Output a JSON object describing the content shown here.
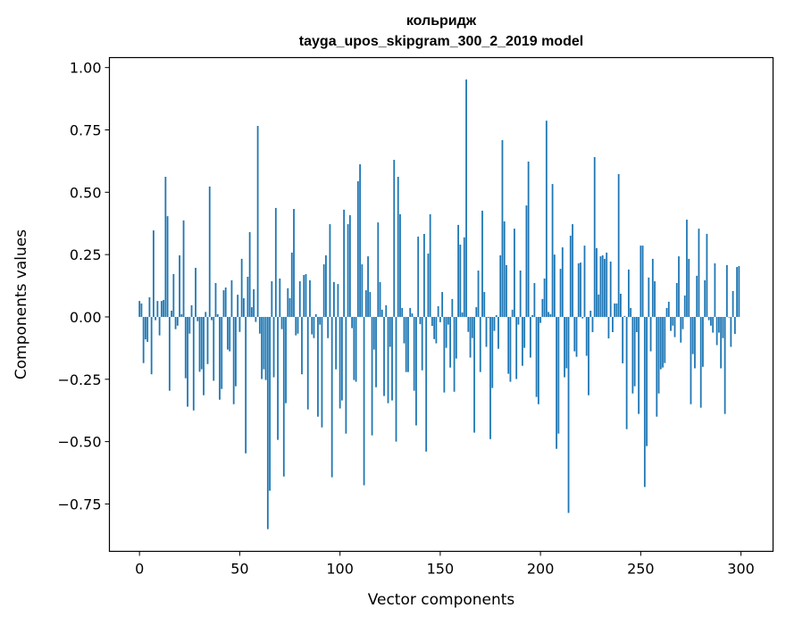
{
  "chart_data": {
    "type": "bar",
    "title_line1": "кольридж",
    "title_line2": "tayga_upos_skipgram_300_2_2019 model",
    "xlabel": "Vector components",
    "ylabel": "Components values",
    "xlim": [
      -15,
      316
    ],
    "ylim": [
      -0.94,
      1.04
    ],
    "xticks": [
      0,
      50,
      100,
      150,
      200,
      250,
      300
    ],
    "xtick_labels": [
      "0",
      "50",
      "100",
      "150",
      "200",
      "250",
      "300"
    ],
    "yticks": [
      -0.75,
      -0.5,
      -0.25,
      0.0,
      0.25,
      0.5,
      0.75,
      1.0
    ],
    "ytick_labels": [
      "−0.75",
      "−0.50",
      "−0.25",
      "0.00",
      "0.25",
      "0.50",
      "0.75",
      "1.00"
    ],
    "grid": false,
    "bar_color": "#1f77b4",
    "values": [
      0.064,
      0.054,
      -0.185,
      -0.09,
      -0.1,
      0.079,
      -0.23,
      0.347,
      -0.013,
      0.064,
      -0.074,
      0.064,
      0.068,
      0.562,
      0.404,
      -0.296,
      0.025,
      0.172,
      -0.049,
      -0.035,
      0.247,
      0.011,
      0.387,
      -0.246,
      -0.36,
      -0.067,
      0.047,
      -0.375,
      0.197,
      -0.017,
      -0.22,
      -0.21,
      -0.314,
      0.02,
      -0.189,
      0.523,
      -0.013,
      -0.256,
      0.136,
      0.011,
      -0.332,
      -0.289,
      0.107,
      0.118,
      -0.131,
      -0.138,
      0.147,
      -0.35,
      -0.278,
      0.089,
      -0.06,
      0.233,
      0.075,
      -0.547,
      0.161,
      0.34,
      0.039,
      0.111,
      -0.02,
      0.766,
      -0.067,
      -0.249,
      -0.21,
      -0.253,
      -0.851,
      -0.697,
      0.143,
      -0.242,
      0.437,
      -0.493,
      0.154,
      -0.049,
      -0.64,
      -0.346,
      0.115,
      0.075,
      0.258,
      0.433,
      -0.074,
      -0.067,
      0.143,
      -0.23,
      0.168,
      0.172,
      -0.371,
      0.147,
      -0.07,
      -0.085,
      0.011,
      -0.4,
      -0.031,
      -0.443,
      0.211,
      0.247,
      -0.085,
      0.372,
      -0.643,
      0.14,
      -0.21,
      0.132,
      -0.367,
      -0.335,
      0.43,
      -0.468,
      0.372,
      0.408,
      -0.045,
      -0.253,
      -0.26,
      0.544,
      0.612,
      0.211,
      -0.675,
      0.107,
      0.243,
      0.1,
      -0.475,
      -0.131,
      -0.282,
      0.379,
      0.14,
      0.029,
      -0.317,
      0.047,
      -0.346,
      -0.12,
      -0.335,
      0.63,
      -0.5,
      0.562,
      0.412,
      0.036,
      -0.106,
      -0.221,
      -0.221,
      0.036,
      0.014,
      -0.296,
      -0.435,
      0.322,
      -0.029,
      -0.214,
      0.333,
      -0.54,
      0.254,
      0.412,
      -0.036,
      -0.089,
      -0.106,
      0.043,
      -0.021,
      0.1,
      -0.303,
      -0.124,
      -0.031,
      -0.203,
      0.072,
      -0.3,
      -0.167,
      0.369,
      0.29,
      0.018,
      0.319,
      0.952,
      -0.06,
      -0.163,
      -0.085,
      -0.464,
      0.039,
      0.186,
      -0.221,
      0.426,
      0.1,
      -0.12,
      -0.004,
      -0.49,
      -0.285,
      -0.056,
      0.007,
      -0.128,
      0.247,
      0.709,
      0.383,
      0.208,
      -0.228,
      -0.26,
      0.029,
      0.354,
      -0.249,
      -0.031,
      0.186,
      -0.196,
      -0.124,
      0.447,
      0.623,
      -0.163,
      0.007,
      0.136,
      -0.321,
      -0.35,
      -0.024,
      0.072,
      0.154,
      0.787,
      0.02,
      0.011,
      0.533,
      0.25,
      -0.529,
      -0.468,
      0.193,
      0.279,
      -0.242,
      -0.206,
      -0.786,
      0.326,
      0.372,
      -0.138,
      -0.16,
      0.215,
      0.218,
      -0.006,
      0.286,
      -0.156,
      -0.314,
      0.025,
      -0.061,
      0.641,
      0.276,
      0.09,
      0.243,
      0.247,
      0.233,
      0.258,
      -0.086,
      0.222,
      -0.061,
      0.054,
      0.054,
      0.573,
      0.093,
      -0.186,
      0.004,
      -0.45,
      0.19,
      0.036,
      -0.307,
      -0.278,
      -0.061,
      -0.389,
      0.286,
      0.286,
      -0.682,
      -0.518,
      0.158,
      -0.138,
      0.233,
      0.143,
      -0.4,
      -0.307,
      -0.21,
      -0.203,
      -0.185,
      0.036,
      0.061,
      -0.056,
      -0.035,
      -0.081,
      0.136,
      0.243,
      -0.103,
      -0.049,
      0.086,
      0.39,
      0.233,
      -0.35,
      -0.149,
      -0.206,
      0.165,
      0.354,
      -0.364,
      -0.2,
      0.147,
      0.333,
      -0.013,
      -0.035,
      -0.063,
      0.215,
      -0.113,
      -0.063,
      -0.206,
      -0.085,
      -0.389,
      0.208,
      -0.002,
      -0.12,
      0.104,
      -0.068,
      0.2,
      0.204
    ]
  }
}
